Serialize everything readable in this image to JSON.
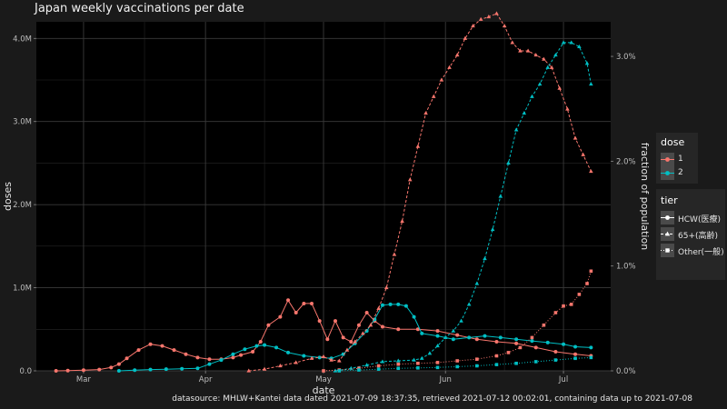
{
  "title": "Japan weekly vaccinations per date",
  "footer": "datasource: MHLW+Kantei data dated 2021-07-09 18:37:35, retrieved 2021-07-12 00:02:01, containing data up to 2021-07-08",
  "colors": {
    "background": "#1a1a1a",
    "panel": "#000000",
    "grid": "#3a3a3a",
    "dose1": "#f8766d",
    "dose2": "#00bfc4"
  },
  "legend": {
    "dose": {
      "title": "dose",
      "items": [
        "1",
        "2"
      ]
    },
    "tier": {
      "title": "tier",
      "items": [
        "HCW(医療)",
        "65+(高齢)",
        "Other(一般)"
      ],
      "shapes": [
        "circle",
        "triangle",
        "square"
      ],
      "line_styles": [
        "solid",
        "dashed",
        "dotted"
      ]
    }
  },
  "chart_data": {
    "type": "line",
    "title": "Japan weekly vaccinations per date",
    "xlabel": "date",
    "ylabel": "doses",
    "y2label": "fraction of population",
    "xlim": [
      "2021-02-17",
      "2021-07-13"
    ],
    "ylim": [
      0,
      4200000
    ],
    "y2lim": [
      0,
      0.0333
    ],
    "x_ticks": [
      {
        "date": "2021-03-01",
        "label": "Mar"
      },
      {
        "date": "2021-04-01",
        "label": "Apr"
      },
      {
        "date": "2021-05-01",
        "label": "May"
      },
      {
        "date": "2021-06-01",
        "label": "Jun"
      },
      {
        "date": "2021-07-01",
        "label": "Jul"
      }
    ],
    "y_ticks": [
      {
        "value": 0,
        "label": "0.0"
      },
      {
        "value": 1000000,
        "label": "1.0M"
      },
      {
        "value": 2000000,
        "label": "2.0M"
      },
      {
        "value": 3000000,
        "label": "3.0M"
      },
      {
        "value": 4000000,
        "label": "4.0M"
      }
    ],
    "y2_ticks": [
      {
        "value": 0,
        "label": "0.0%"
      },
      {
        "value": 0.01,
        "label": "1.0%"
      },
      {
        "value": 0.02,
        "label": "2.0%"
      },
      {
        "value": 0.03,
        "label": "3.0%"
      }
    ],
    "grid": true,
    "legend_position": "right",
    "series": [
      {
        "dose": "1",
        "tier": "HCW(医療)",
        "points": [
          [
            "2021-02-22",
            0
          ],
          [
            "2021-02-25",
            3000
          ],
          [
            "2021-03-01",
            8000
          ],
          [
            "2021-03-05",
            15000
          ],
          [
            "2021-03-08",
            40000
          ],
          [
            "2021-03-10",
            80000
          ],
          [
            "2021-03-12",
            150000
          ],
          [
            "2021-03-15",
            250000
          ],
          [
            "2021-03-18",
            320000
          ],
          [
            "2021-03-21",
            300000
          ],
          [
            "2021-03-24",
            250000
          ],
          [
            "2021-03-27",
            200000
          ],
          [
            "2021-03-30",
            160000
          ],
          [
            "2021-04-02",
            140000
          ],
          [
            "2021-04-05",
            140000
          ],
          [
            "2021-04-08",
            160000
          ],
          [
            "2021-04-10",
            190000
          ],
          [
            "2021-04-13",
            230000
          ],
          [
            "2021-04-15",
            350000
          ],
          [
            "2021-04-17",
            550000
          ],
          [
            "2021-04-20",
            650000
          ],
          [
            "2021-04-22",
            850000
          ],
          [
            "2021-04-24",
            700000
          ],
          [
            "2021-04-26",
            810000
          ],
          [
            "2021-04-28",
            810000
          ],
          [
            "2021-04-30",
            600000
          ],
          [
            "2021-05-02",
            380000
          ],
          [
            "2021-05-04",
            600000
          ],
          [
            "2021-05-06",
            400000
          ],
          [
            "2021-05-08",
            350000
          ],
          [
            "2021-05-10",
            550000
          ],
          [
            "2021-05-12",
            700000
          ],
          [
            "2021-05-14",
            600000
          ],
          [
            "2021-05-16",
            530000
          ],
          [
            "2021-05-20",
            500000
          ],
          [
            "2021-05-25",
            500000
          ],
          [
            "2021-05-30",
            480000
          ],
          [
            "2021-06-04",
            430000
          ],
          [
            "2021-06-09",
            380000
          ],
          [
            "2021-06-14",
            350000
          ],
          [
            "2021-06-19",
            330000
          ],
          [
            "2021-06-24",
            280000
          ],
          [
            "2021-06-29",
            230000
          ],
          [
            "2021-07-04",
            200000
          ],
          [
            "2021-07-08",
            180000
          ]
        ]
      },
      {
        "dose": "2",
        "tier": "HCW(医療)",
        "points": [
          [
            "2021-03-10",
            0
          ],
          [
            "2021-03-14",
            8000
          ],
          [
            "2021-03-18",
            15000
          ],
          [
            "2021-03-22",
            20000
          ],
          [
            "2021-03-26",
            25000
          ],
          [
            "2021-03-30",
            30000
          ],
          [
            "2021-04-02",
            80000
          ],
          [
            "2021-04-05",
            130000
          ],
          [
            "2021-04-08",
            200000
          ],
          [
            "2021-04-11",
            260000
          ],
          [
            "2021-04-14",
            300000
          ],
          [
            "2021-04-16",
            310000
          ],
          [
            "2021-04-19",
            280000
          ],
          [
            "2021-04-22",
            220000
          ],
          [
            "2021-04-26",
            180000
          ],
          [
            "2021-04-30",
            160000
          ],
          [
            "2021-05-03",
            150000
          ],
          [
            "2021-05-06",
            200000
          ],
          [
            "2021-05-09",
            330000
          ],
          [
            "2021-05-12",
            480000
          ],
          [
            "2021-05-14",
            620000
          ],
          [
            "2021-05-16",
            790000
          ],
          [
            "2021-05-18",
            800000
          ],
          [
            "2021-05-20",
            800000
          ],
          [
            "2021-05-22",
            780000
          ],
          [
            "2021-05-24",
            650000
          ],
          [
            "2021-05-26",
            450000
          ],
          [
            "2021-05-30",
            420000
          ],
          [
            "2021-06-03",
            380000
          ],
          [
            "2021-06-07",
            400000
          ],
          [
            "2021-06-11",
            420000
          ],
          [
            "2021-06-15",
            400000
          ],
          [
            "2021-06-19",
            380000
          ],
          [
            "2021-06-23",
            360000
          ],
          [
            "2021-06-27",
            340000
          ],
          [
            "2021-07-01",
            320000
          ],
          [
            "2021-07-04",
            290000
          ],
          [
            "2021-07-08",
            280000
          ]
        ]
      },
      {
        "dose": "1",
        "tier": "65+(高齢)",
        "points": [
          [
            "2021-04-12",
            0
          ],
          [
            "2021-04-16",
            20000
          ],
          [
            "2021-04-20",
            60000
          ],
          [
            "2021-04-24",
            100000
          ],
          [
            "2021-04-28",
            150000
          ],
          [
            "2021-05-01",
            170000
          ],
          [
            "2021-05-03",
            130000
          ],
          [
            "2021-05-05",
            120000
          ],
          [
            "2021-05-07",
            250000
          ],
          [
            "2021-05-09",
            350000
          ],
          [
            "2021-05-11",
            450000
          ],
          [
            "2021-05-13",
            550000
          ],
          [
            "2021-05-15",
            750000
          ],
          [
            "2021-05-17",
            1000000
          ],
          [
            "2021-05-19",
            1400000
          ],
          [
            "2021-05-21",
            1800000
          ],
          [
            "2021-05-23",
            2300000
          ],
          [
            "2021-05-25",
            2700000
          ],
          [
            "2021-05-27",
            3100000
          ],
          [
            "2021-05-29",
            3300000
          ],
          [
            "2021-05-31",
            3500000
          ],
          [
            "2021-06-02",
            3650000
          ],
          [
            "2021-06-04",
            3800000
          ],
          [
            "2021-06-06",
            4000000
          ],
          [
            "2021-06-08",
            4150000
          ],
          [
            "2021-06-10",
            4230000
          ],
          [
            "2021-06-12",
            4260000
          ],
          [
            "2021-06-14",
            4300000
          ],
          [
            "2021-06-16",
            4150000
          ],
          [
            "2021-06-18",
            3950000
          ],
          [
            "2021-06-20",
            3850000
          ],
          [
            "2021-06-22",
            3850000
          ],
          [
            "2021-06-24",
            3800000
          ],
          [
            "2021-06-26",
            3750000
          ],
          [
            "2021-06-28",
            3650000
          ],
          [
            "2021-06-30",
            3400000
          ],
          [
            "2021-07-02",
            3150000
          ],
          [
            "2021-07-04",
            2800000
          ],
          [
            "2021-07-06",
            2600000
          ],
          [
            "2021-07-08",
            2400000
          ]
        ]
      },
      {
        "dose": "2",
        "tier": "65+(高齢)",
        "points": [
          [
            "2021-05-04",
            0
          ],
          [
            "2021-05-08",
            30000
          ],
          [
            "2021-05-12",
            70000
          ],
          [
            "2021-05-16",
            110000
          ],
          [
            "2021-05-20",
            120000
          ],
          [
            "2021-05-24",
            130000
          ],
          [
            "2021-05-26",
            150000
          ],
          [
            "2021-05-28",
            210000
          ],
          [
            "2021-05-30",
            300000
          ],
          [
            "2021-06-01",
            400000
          ],
          [
            "2021-06-03",
            480000
          ],
          [
            "2021-06-05",
            600000
          ],
          [
            "2021-06-07",
            800000
          ],
          [
            "2021-06-09",
            1050000
          ],
          [
            "2021-06-11",
            1350000
          ],
          [
            "2021-06-13",
            1700000
          ],
          [
            "2021-06-15",
            2100000
          ],
          [
            "2021-06-17",
            2500000
          ],
          [
            "2021-06-19",
            2900000
          ],
          [
            "2021-06-21",
            3100000
          ],
          [
            "2021-06-23",
            3300000
          ],
          [
            "2021-06-25",
            3450000
          ],
          [
            "2021-06-27",
            3650000
          ],
          [
            "2021-06-29",
            3800000
          ],
          [
            "2021-07-01",
            3950000
          ],
          [
            "2021-07-03",
            3950000
          ],
          [
            "2021-07-05",
            3900000
          ],
          [
            "2021-07-07",
            3700000
          ],
          [
            "2021-07-08",
            3450000
          ]
        ]
      },
      {
        "dose": "1",
        "tier": "Other(一般)",
        "points": [
          [
            "2021-05-01",
            0
          ],
          [
            "2021-05-05",
            10000
          ],
          [
            "2021-05-10",
            30000
          ],
          [
            "2021-05-15",
            60000
          ],
          [
            "2021-05-20",
            80000
          ],
          [
            "2021-05-25",
            90000
          ],
          [
            "2021-05-30",
            100000
          ],
          [
            "2021-06-04",
            120000
          ],
          [
            "2021-06-09",
            140000
          ],
          [
            "2021-06-14",
            180000
          ],
          [
            "2021-06-17",
            220000
          ],
          [
            "2021-06-20",
            280000
          ],
          [
            "2021-06-23",
            400000
          ],
          [
            "2021-06-26",
            550000
          ],
          [
            "2021-06-29",
            700000
          ],
          [
            "2021-07-01",
            780000
          ],
          [
            "2021-07-03",
            800000
          ],
          [
            "2021-07-05",
            920000
          ],
          [
            "2021-07-07",
            1050000
          ],
          [
            "2021-07-08",
            1200000
          ]
        ]
      },
      {
        "dose": "2",
        "tier": "Other(一般)",
        "points": [
          [
            "2021-05-05",
            0
          ],
          [
            "2021-05-10",
            10000
          ],
          [
            "2021-05-15",
            20000
          ],
          [
            "2021-05-20",
            30000
          ],
          [
            "2021-05-25",
            35000
          ],
          [
            "2021-05-30",
            40000
          ],
          [
            "2021-06-04",
            50000
          ],
          [
            "2021-06-09",
            60000
          ],
          [
            "2021-06-14",
            75000
          ],
          [
            "2021-06-19",
            90000
          ],
          [
            "2021-06-24",
            110000
          ],
          [
            "2021-06-29",
            130000
          ],
          [
            "2021-07-04",
            150000
          ],
          [
            "2021-07-08",
            160000
          ]
        ]
      }
    ]
  }
}
